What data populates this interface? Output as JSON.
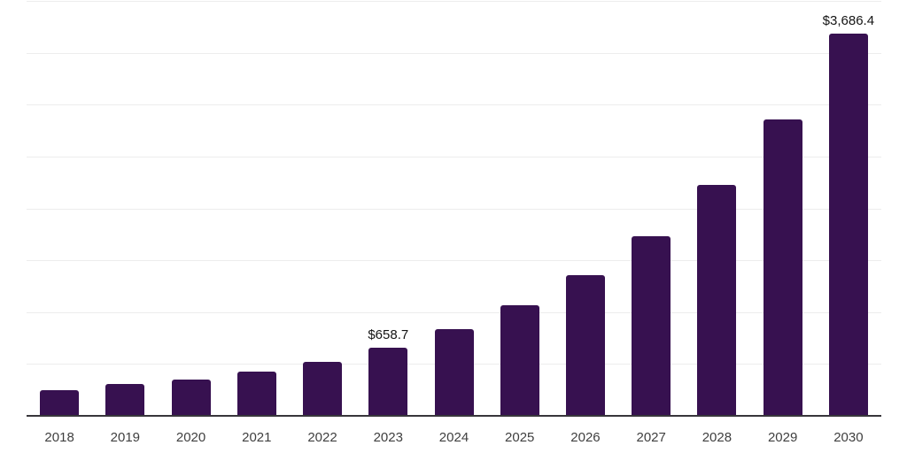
{
  "chart_data": {
    "type": "bar",
    "title": "",
    "xlabel": "",
    "ylabel": "",
    "categories": [
      "2018",
      "2019",
      "2020",
      "2021",
      "2022",
      "2023",
      "2024",
      "2025",
      "2026",
      "2027",
      "2028",
      "2029",
      "2030"
    ],
    "values": [
      247,
      307,
      350,
      426,
      520,
      658.7,
      836,
      1066,
      1356,
      1731,
      2226,
      2857,
      3686.4
    ],
    "data_labels": [
      {
        "category": "2023",
        "text": "$658.7"
      },
      {
        "category": "2030",
        "text": "$3,686.4"
      }
    ],
    "ylim": [
      0,
      4000
    ],
    "gridline_step": 500,
    "grid": true,
    "legend": false,
    "colors": {
      "bar": "#371150",
      "axis": "#38363b",
      "gridline": "#ededed",
      "tick_label": "#3f3f3f",
      "data_label": "#141414",
      "background": "#ffffff"
    }
  }
}
